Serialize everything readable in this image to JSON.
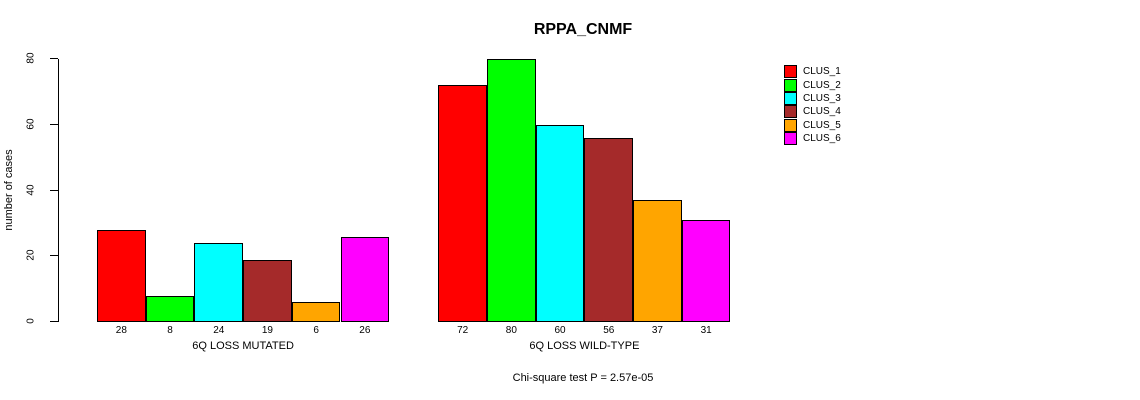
{
  "chart_data": {
    "type": "bar",
    "title": "RPPA_CNMF",
    "ylabel": "number of cases",
    "xlabel": "",
    "ylim": [
      0,
      80
    ],
    "yticks": [
      0,
      20,
      40,
      60,
      80
    ],
    "grid": false,
    "legend_position": "upper-right",
    "categories": [
      "6Q LOSS MUTATED",
      "6Q LOSS WILD-TYPE"
    ],
    "series": [
      {
        "name": "CLUS_1",
        "color": "#FF0000",
        "values": [
          28,
          72
        ]
      },
      {
        "name": "CLUS_2",
        "color": "#00FF00",
        "values": [
          8,
          80
        ]
      },
      {
        "name": "CLUS_3",
        "color": "#00FFFF",
        "values": [
          24,
          60
        ]
      },
      {
        "name": "CLUS_4",
        "color": "#A52A2A",
        "values": [
          19,
          56
        ]
      },
      {
        "name": "CLUS_5",
        "color": "#FFA500",
        "values": [
          6,
          37
        ]
      },
      {
        "name": "CLUS_6",
        "color": "#FF00FF",
        "values": [
          26,
          31
        ]
      }
    ],
    "show_value_labels": true,
    "annotation": "Chi-square test P = 2.57e-05"
  },
  "colors": {
    "axis": "#000000",
    "text": "#000000",
    "background": "#FFFFFF"
  }
}
